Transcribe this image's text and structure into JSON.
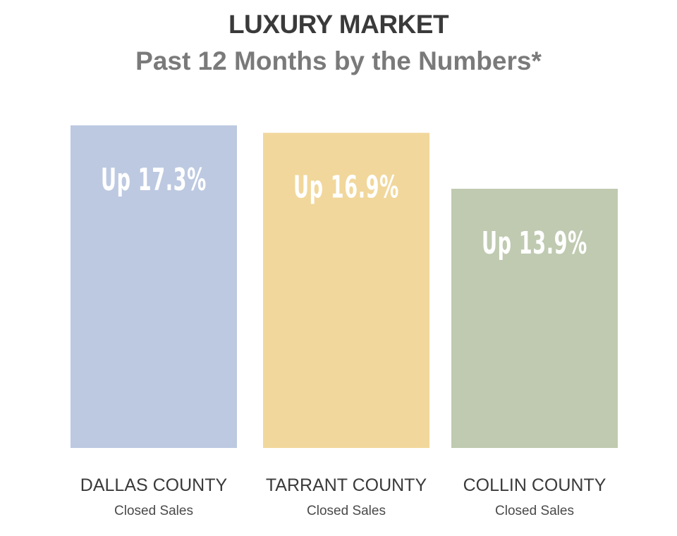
{
  "header": {
    "title": "LUXURY MARKET",
    "subtitle": "Past 12 Months by the Numbers*"
  },
  "chart_data": {
    "type": "bar",
    "title": "LUXURY MARKET",
    "subtitle": "Past 12 Months by the Numbers*",
    "categories": [
      "DALLAS COUNTY",
      "TARRANT COUNTY",
      "COLLIN COUNTY"
    ],
    "category_sublabels": [
      "Closed Sales",
      "Closed Sales",
      "Closed Sales"
    ],
    "values": [
      17.3,
      16.9,
      13.9
    ],
    "data_labels": [
      "Up 17.3%",
      "Up 16.9%",
      "Up 13.9%"
    ],
    "colors": [
      "#bdc9e1",
      "#f1d79b",
      "#bfcab0"
    ],
    "unit": "%",
    "ylim": [
      0,
      17.3
    ],
    "grid": false,
    "axes_visible": false,
    "legend": "none"
  }
}
